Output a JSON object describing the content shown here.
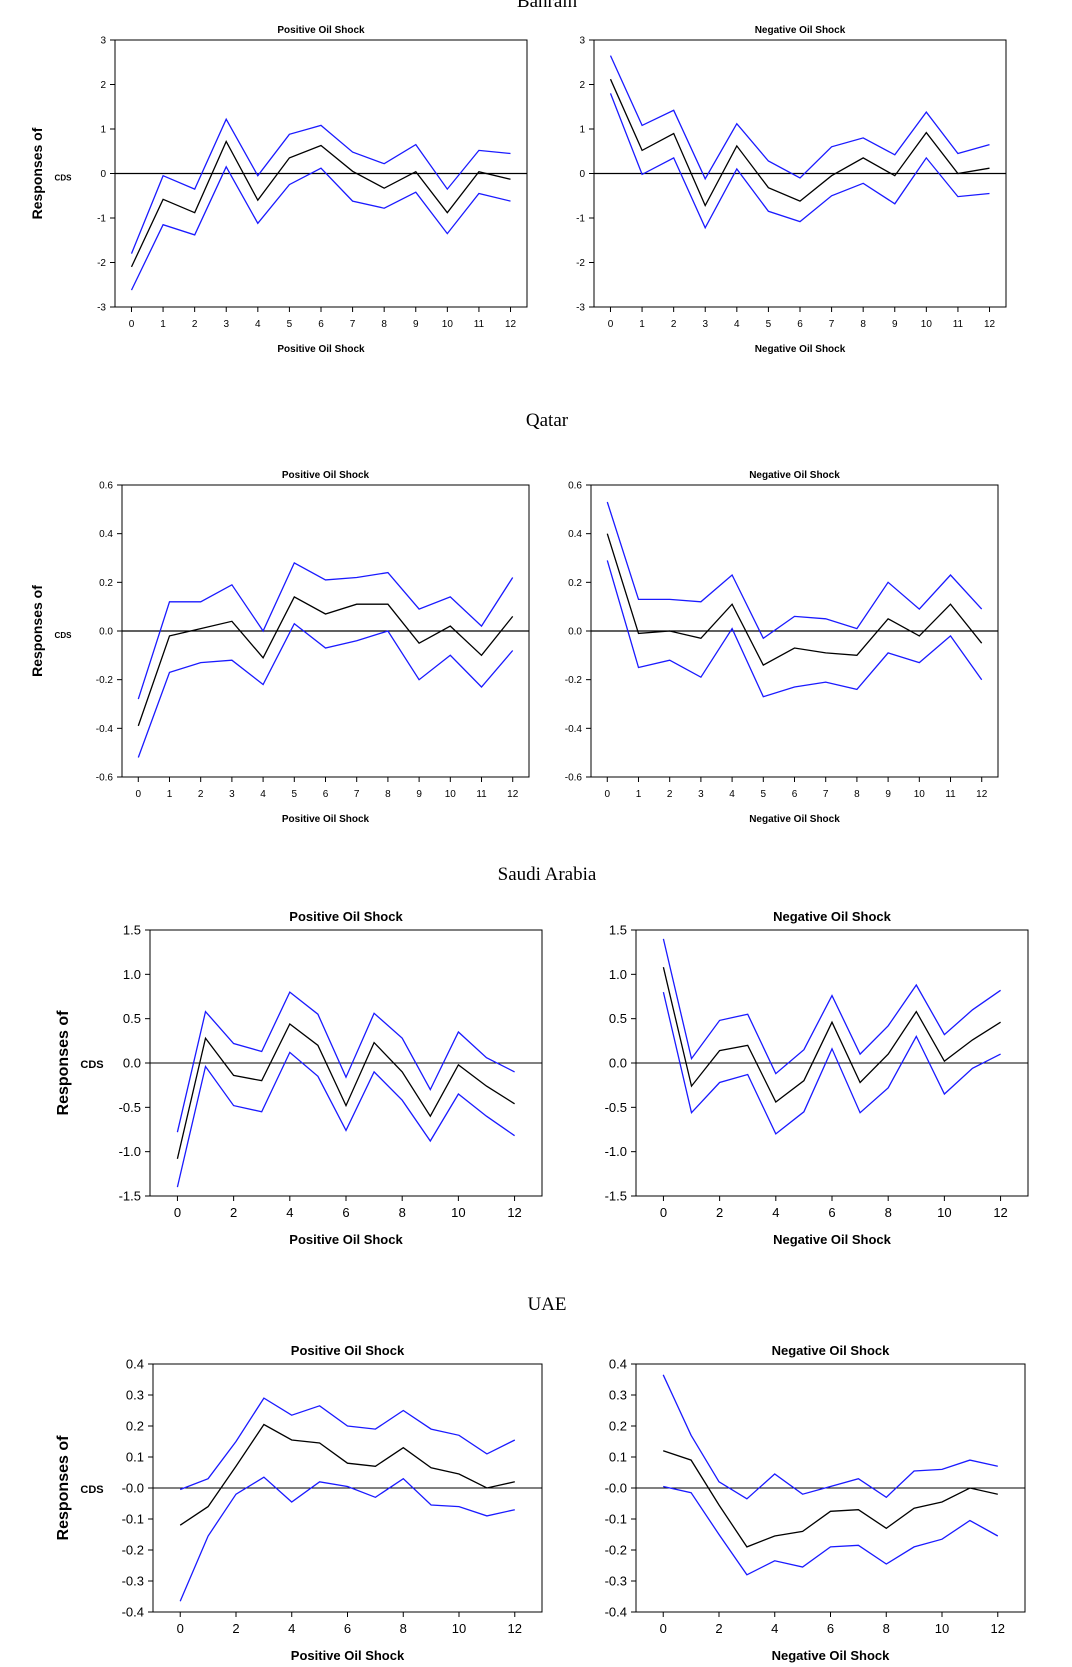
{
  "colors": {
    "band": "#1a1aff",
    "response": "#000000",
    "axis": "#000000"
  },
  "chart_data": [
    {
      "type": "line",
      "country": "Bahrain",
      "title": "Positive Oil Shock",
      "xlabel": "Positive Oil Shock",
      "ylabel": "Responses of",
      "variable": "CDS",
      "x": [
        0,
        1,
        2,
        3,
        4,
        5,
        6,
        7,
        8,
        9,
        10,
        11,
        12
      ],
      "xticks": [
        "0",
        "1",
        "2",
        "3",
        "4",
        "5",
        "6",
        "7",
        "8",
        "9",
        "10",
        "11",
        "12"
      ],
      "ylim": [
        -3,
        3
      ],
      "yticks": [
        "-3",
        "-2",
        "-1",
        "0",
        "1",
        "2",
        "3"
      ],
      "series": [
        {
          "name": "upper",
          "values": [
            -1.8,
            -0.05,
            -0.35,
            1.22,
            -0.05,
            0.88,
            1.08,
            0.48,
            0.22,
            0.65,
            -0.35,
            0.52,
            0.45
          ]
        },
        {
          "name": "response",
          "values": [
            -2.1,
            -0.58,
            -0.88,
            0.72,
            -0.6,
            0.35,
            0.63,
            0.05,
            -0.33,
            0.04,
            -0.88,
            0.04,
            -0.13
          ]
        },
        {
          "name": "lower",
          "values": [
            -2.62,
            -1.15,
            -1.38,
            0.15,
            -1.12,
            -0.25,
            0.12,
            -0.62,
            -0.78,
            -0.42,
            -1.35,
            -0.45,
            -0.62
          ]
        }
      ]
    },
    {
      "type": "line",
      "country": "Bahrain",
      "title": "Negative Oil Shock",
      "xlabel": "Negative Oil Shock",
      "ylabel": "",
      "variable": "",
      "x": [
        0,
        1,
        2,
        3,
        4,
        5,
        6,
        7,
        8,
        9,
        10,
        11,
        12
      ],
      "xticks": [
        "0",
        "1",
        "2",
        "3",
        "4",
        "5",
        "6",
        "7",
        "8",
        "9",
        "10",
        "11",
        "12"
      ],
      "ylim": [
        -3,
        3
      ],
      "yticks": [
        "-3",
        "-2",
        "-1",
        "0",
        "1",
        "2",
        "3"
      ],
      "series": [
        {
          "name": "upper",
          "values": [
            2.65,
            1.08,
            1.42,
            -0.12,
            1.12,
            0.28,
            -0.1,
            0.6,
            0.8,
            0.42,
            1.38,
            0.45,
            0.65
          ]
        },
        {
          "name": "response",
          "values": [
            2.12,
            0.52,
            0.9,
            -0.72,
            0.62,
            -0.32,
            -0.62,
            -0.05,
            0.35,
            -0.05,
            0.92,
            0.0,
            0.12
          ]
        },
        {
          "name": "lower",
          "values": [
            1.8,
            -0.02,
            0.35,
            -1.22,
            0.1,
            -0.85,
            -1.08,
            -0.5,
            -0.22,
            -0.68,
            0.35,
            -0.52,
            -0.45
          ]
        }
      ]
    },
    {
      "type": "line",
      "country": "Qatar",
      "title": "Positive Oil Shock",
      "xlabel": "Positive Oil Shock",
      "ylabel": "Responses of",
      "variable": "CDS",
      "x": [
        0,
        1,
        2,
        3,
        4,
        5,
        6,
        7,
        8,
        9,
        10,
        11,
        12
      ],
      "xticks": [
        "0",
        "1",
        "2",
        "3",
        "4",
        "5",
        "6",
        "7",
        "8",
        "9",
        "10",
        "11",
        "12"
      ],
      "ylim": [
        -0.6,
        0.6
      ],
      "yticks": [
        "-0.6",
        "-0.4",
        "-0.2",
        "0.0",
        "0.2",
        "0.4",
        "0.6"
      ],
      "series": [
        {
          "name": "upper",
          "values": [
            -0.28,
            0.12,
            0.12,
            0.19,
            0.0,
            0.28,
            0.21,
            0.22,
            0.24,
            0.09,
            0.14,
            0.02,
            0.22
          ]
        },
        {
          "name": "response",
          "values": [
            -0.39,
            -0.02,
            0.01,
            0.04,
            -0.11,
            0.14,
            0.07,
            0.11,
            0.11,
            -0.05,
            0.02,
            -0.1,
            0.06
          ]
        },
        {
          "name": "lower",
          "values": [
            -0.52,
            -0.17,
            -0.13,
            -0.12,
            -0.22,
            0.03,
            -0.07,
            -0.04,
            0.0,
            -0.2,
            -0.1,
            -0.23,
            -0.08
          ]
        }
      ]
    },
    {
      "type": "line",
      "country": "Qatar",
      "title": "Negative Oil Shock",
      "xlabel": "Negative Oil Shock",
      "ylabel": "",
      "variable": "",
      "x": [
        0,
        1,
        2,
        3,
        4,
        5,
        6,
        7,
        8,
        9,
        10,
        11,
        12
      ],
      "xticks": [
        "0",
        "1",
        "2",
        "3",
        "4",
        "5",
        "6",
        "7",
        "8",
        "9",
        "10",
        "11",
        "12"
      ],
      "ylim": [
        -0.6,
        0.6
      ],
      "yticks": [
        "-0.6",
        "-0.4",
        "-0.2",
        "0.0",
        "0.2",
        "0.4",
        "0.6"
      ],
      "series": [
        {
          "name": "upper",
          "values": [
            0.53,
            0.13,
            0.13,
            0.12,
            0.23,
            -0.03,
            0.06,
            0.05,
            0.01,
            0.2,
            0.09,
            0.23,
            0.09
          ]
        },
        {
          "name": "response",
          "values": [
            0.4,
            -0.01,
            0.0,
            -0.03,
            0.11,
            -0.14,
            -0.07,
            -0.09,
            -0.1,
            0.05,
            -0.02,
            0.11,
            -0.05
          ]
        },
        {
          "name": "lower",
          "values": [
            0.29,
            -0.15,
            -0.12,
            -0.19,
            0.01,
            -0.27,
            -0.23,
            -0.21,
            -0.24,
            -0.09,
            -0.13,
            -0.02,
            -0.2
          ]
        }
      ]
    },
    {
      "type": "line",
      "country": "Saudi Arabia",
      "title": "Positive Oil Shock",
      "xlabel": "Positive Oil Shock",
      "ylabel": "Responses of",
      "variable": "CDS",
      "x": [
        0,
        1,
        2,
        3,
        4,
        5,
        6,
        7,
        8,
        9,
        10,
        11,
        12
      ],
      "xticks": [
        "0",
        "2",
        "4",
        "6",
        "8",
        "10",
        "12"
      ],
      "ylim": [
        -1.5,
        1.5
      ],
      "yticks": [
        "-1.5",
        "-1.0",
        "-0.5",
        "0.0",
        "0.5",
        "1.0",
        "1.5"
      ],
      "series": [
        {
          "name": "upper",
          "values": [
            -0.78,
            0.58,
            0.22,
            0.13,
            0.8,
            0.55,
            -0.16,
            0.56,
            0.28,
            -0.3,
            0.35,
            0.06,
            -0.1
          ]
        },
        {
          "name": "response",
          "values": [
            -1.08,
            0.28,
            -0.14,
            -0.2,
            0.44,
            0.2,
            -0.48,
            0.23,
            -0.1,
            -0.6,
            -0.02,
            -0.26,
            -0.46
          ]
        },
        {
          "name": "lower",
          "values": [
            -1.4,
            -0.04,
            -0.48,
            -0.55,
            0.12,
            -0.15,
            -0.76,
            -0.1,
            -0.42,
            -0.88,
            -0.35,
            -0.6,
            -0.82
          ]
        }
      ]
    },
    {
      "type": "line",
      "country": "Saudi Arabia",
      "title": "Negative Oil Shock",
      "xlabel": "Negative Oil Shock",
      "ylabel": "",
      "variable": "",
      "x": [
        0,
        1,
        2,
        3,
        4,
        5,
        6,
        7,
        8,
        9,
        10,
        11,
        12
      ],
      "xticks": [
        "0",
        "2",
        "4",
        "6",
        "8",
        "10",
        "12"
      ],
      "ylim": [
        -1.5,
        1.5
      ],
      "yticks": [
        "-1.5",
        "-1.0",
        "-0.5",
        "0.0",
        "0.5",
        "1.0",
        "1.5"
      ],
      "series": [
        {
          "name": "upper",
          "values": [
            1.4,
            0.05,
            0.48,
            0.55,
            -0.12,
            0.15,
            0.76,
            0.1,
            0.42,
            0.88,
            0.32,
            0.6,
            0.82
          ]
        },
        {
          "name": "response",
          "values": [
            1.08,
            -0.26,
            0.14,
            0.2,
            -0.44,
            -0.2,
            0.46,
            -0.22,
            0.1,
            0.58,
            0.02,
            0.26,
            0.46
          ]
        },
        {
          "name": "lower",
          "values": [
            0.8,
            -0.56,
            -0.22,
            -0.13,
            -0.8,
            -0.55,
            0.16,
            -0.56,
            -0.28,
            0.3,
            -0.35,
            -0.06,
            0.1
          ]
        }
      ]
    },
    {
      "type": "line",
      "country": "UAE",
      "title": "Positive Oil Shock",
      "xlabel": "Positive Oil Shock",
      "ylabel": "Responses of",
      "variable": "CDS",
      "x": [
        0,
        1,
        2,
        3,
        4,
        5,
        6,
        7,
        8,
        9,
        10,
        11,
        12
      ],
      "xticks": [
        "0",
        "2",
        "4",
        "6",
        "8",
        "10",
        "12"
      ],
      "ylim": [
        -0.4,
        0.4
      ],
      "yticks": [
        "-0.4",
        "-0.3",
        "-0.2",
        "-0.1",
        "-0.0",
        "0.1",
        "0.2",
        "0.3",
        "0.4"
      ],
      "series": [
        {
          "name": "upper",
          "values": [
            -0.005,
            0.03,
            0.15,
            0.29,
            0.235,
            0.265,
            0.2,
            0.19,
            0.25,
            0.19,
            0.17,
            0.11,
            0.155
          ]
        },
        {
          "name": "response",
          "values": [
            -0.12,
            -0.06,
            0.07,
            0.205,
            0.155,
            0.145,
            0.08,
            0.07,
            0.13,
            0.065,
            0.045,
            0.0,
            0.02
          ]
        },
        {
          "name": "lower",
          "values": [
            -0.365,
            -0.155,
            -0.02,
            0.035,
            -0.045,
            0.02,
            0.005,
            -0.03,
            0.03,
            -0.055,
            -0.06,
            -0.09,
            -0.07
          ]
        }
      ]
    },
    {
      "type": "line",
      "country": "UAE",
      "title": "Negative Oil Shock",
      "xlabel": "Negative Oil Shock",
      "ylabel": "",
      "variable": "",
      "x": [
        0,
        1,
        2,
        3,
        4,
        5,
        6,
        7,
        8,
        9,
        10,
        11,
        12
      ],
      "xticks": [
        "0",
        "2",
        "4",
        "6",
        "8",
        "10",
        "12"
      ],
      "ylim": [
        -0.4,
        0.4
      ],
      "yticks": [
        "-0.4",
        "-0.3",
        "-0.2",
        "-0.1",
        "-0.0",
        "0.1",
        "0.2",
        "0.3",
        "0.4"
      ],
      "series": [
        {
          "name": "upper",
          "values": [
            0.365,
            0.17,
            0.02,
            -0.035,
            0.045,
            -0.02,
            0.005,
            0.03,
            -0.03,
            0.055,
            0.06,
            0.09,
            0.07
          ]
        },
        {
          "name": "response",
          "values": [
            0.12,
            0.09,
            -0.055,
            -0.19,
            -0.155,
            -0.14,
            -0.075,
            -0.07,
            -0.13,
            -0.065,
            -0.045,
            0.0,
            -0.02
          ]
        },
        {
          "name": "lower",
          "values": [
            0.005,
            -0.015,
            -0.15,
            -0.28,
            -0.235,
            -0.255,
            -0.19,
            -0.185,
            -0.245,
            -0.19,
            -0.165,
            -0.105,
            -0.155
          ]
        }
      ]
    }
  ]
}
